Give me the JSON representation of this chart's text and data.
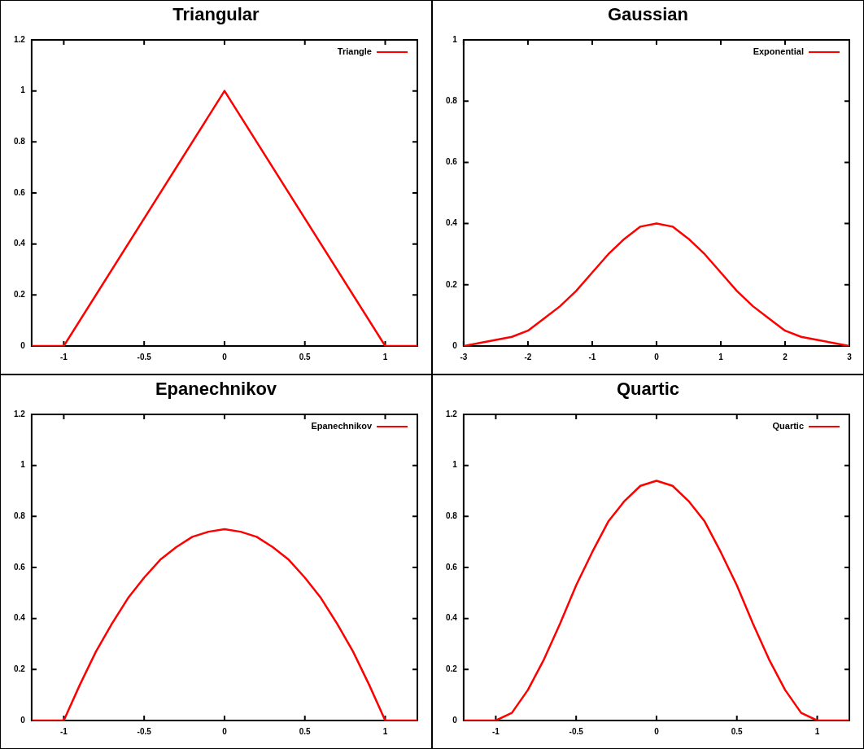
{
  "chart_data": [
    {
      "type": "line",
      "title": "Triangular",
      "x": [
        -1.2,
        -1,
        0,
        1,
        1.2
      ],
      "series": [
        {
          "name": "Triangle",
          "color": "#ff0000",
          "values": [
            0,
            0,
            1,
            0,
            0
          ]
        }
      ],
      "xlim": [
        -1.2,
        1.2
      ],
      "xticks": [
        -1,
        -0.5,
        0,
        0.5,
        1
      ],
      "ylim": [
        0,
        1.2
      ],
      "yticks": [
        0,
        0.2,
        0.4,
        0.6,
        0.8,
        1,
        1.2
      ],
      "legend": "top right",
      "marker": "none",
      "line_style": "solid"
    },
    {
      "type": "line",
      "title": "Gaussian",
      "x": [
        -3,
        -2.75,
        -2.5,
        -2.25,
        -2,
        -1.75,
        -1.5,
        -1.25,
        -1,
        -0.75,
        -0.5,
        -0.25,
        0,
        0.25,
        0.5,
        0.75,
        1,
        1.25,
        1.5,
        1.75,
        2,
        2.25,
        2.5,
        2.75,
        3
      ],
      "series": [
        {
          "name": "Exponential",
          "color": "#ff0000",
          "values": [
            0.0,
            0.01,
            0.02,
            0.03,
            0.05,
            0.09,
            0.13,
            0.18,
            0.24,
            0.3,
            0.35,
            0.39,
            0.4,
            0.39,
            0.35,
            0.3,
            0.24,
            0.18,
            0.13,
            0.09,
            0.05,
            0.03,
            0.02,
            0.01,
            0.0
          ]
        }
      ],
      "xlim": [
        -3,
        3
      ],
      "xticks": [
        -3,
        -2,
        -1,
        0,
        1,
        2,
        3
      ],
      "ylim": [
        0,
        1
      ],
      "yticks": [
        0,
        0.2,
        0.4,
        0.6,
        0.8,
        1
      ],
      "legend": "top right",
      "marker": "none",
      "line_style": "solid"
    },
    {
      "type": "line",
      "title": "Epanechnikov",
      "x": [
        -1.2,
        -1,
        -0.9,
        -0.8,
        -0.7,
        -0.6,
        -0.5,
        -0.4,
        -0.3,
        -0.2,
        -0.1,
        0,
        0.1,
        0.2,
        0.3,
        0.4,
        0.5,
        0.6,
        0.7,
        0.8,
        0.9,
        1,
        1.2
      ],
      "series": [
        {
          "name": "Epanechnikov",
          "color": "#ff0000",
          "values": [
            0,
            0,
            0.14,
            0.27,
            0.38,
            0.48,
            0.56,
            0.63,
            0.68,
            0.72,
            0.74,
            0.75,
            0.74,
            0.72,
            0.68,
            0.63,
            0.56,
            0.48,
            0.38,
            0.27,
            0.14,
            0,
            0
          ]
        }
      ],
      "xlim": [
        -1.2,
        1.2
      ],
      "xticks": [
        -1,
        -0.5,
        0,
        0.5,
        1
      ],
      "ylim": [
        0,
        1.2
      ],
      "yticks": [
        0,
        0.2,
        0.4,
        0.6,
        0.8,
        1,
        1.2
      ],
      "legend": "top right",
      "marker": "none",
      "line_style": "solid"
    },
    {
      "type": "line",
      "title": "Quartic",
      "x": [
        -1.2,
        -1,
        -0.9,
        -0.8,
        -0.7,
        -0.6,
        -0.5,
        -0.4,
        -0.3,
        -0.2,
        -0.1,
        0,
        0.1,
        0.2,
        0.3,
        0.4,
        0.5,
        0.6,
        0.7,
        0.8,
        0.9,
        1,
        1.2
      ],
      "series": [
        {
          "name": "Quartic",
          "color": "#ff0000",
          "values": [
            0,
            0,
            0.03,
            0.12,
            0.24,
            0.38,
            0.53,
            0.66,
            0.78,
            0.86,
            0.92,
            0.94,
            0.92,
            0.86,
            0.78,
            0.66,
            0.53,
            0.38,
            0.24,
            0.12,
            0.03,
            0,
            0
          ]
        }
      ],
      "xlim": [
        -1.2,
        1.2
      ],
      "xticks": [
        -1,
        -0.5,
        0,
        0.5,
        1
      ],
      "ylim": [
        0,
        1.2
      ],
      "yticks": [
        0,
        0.2,
        0.4,
        0.6,
        0.8,
        1,
        1.2
      ],
      "legend": "top right",
      "marker": "none",
      "line_style": "solid"
    }
  ]
}
